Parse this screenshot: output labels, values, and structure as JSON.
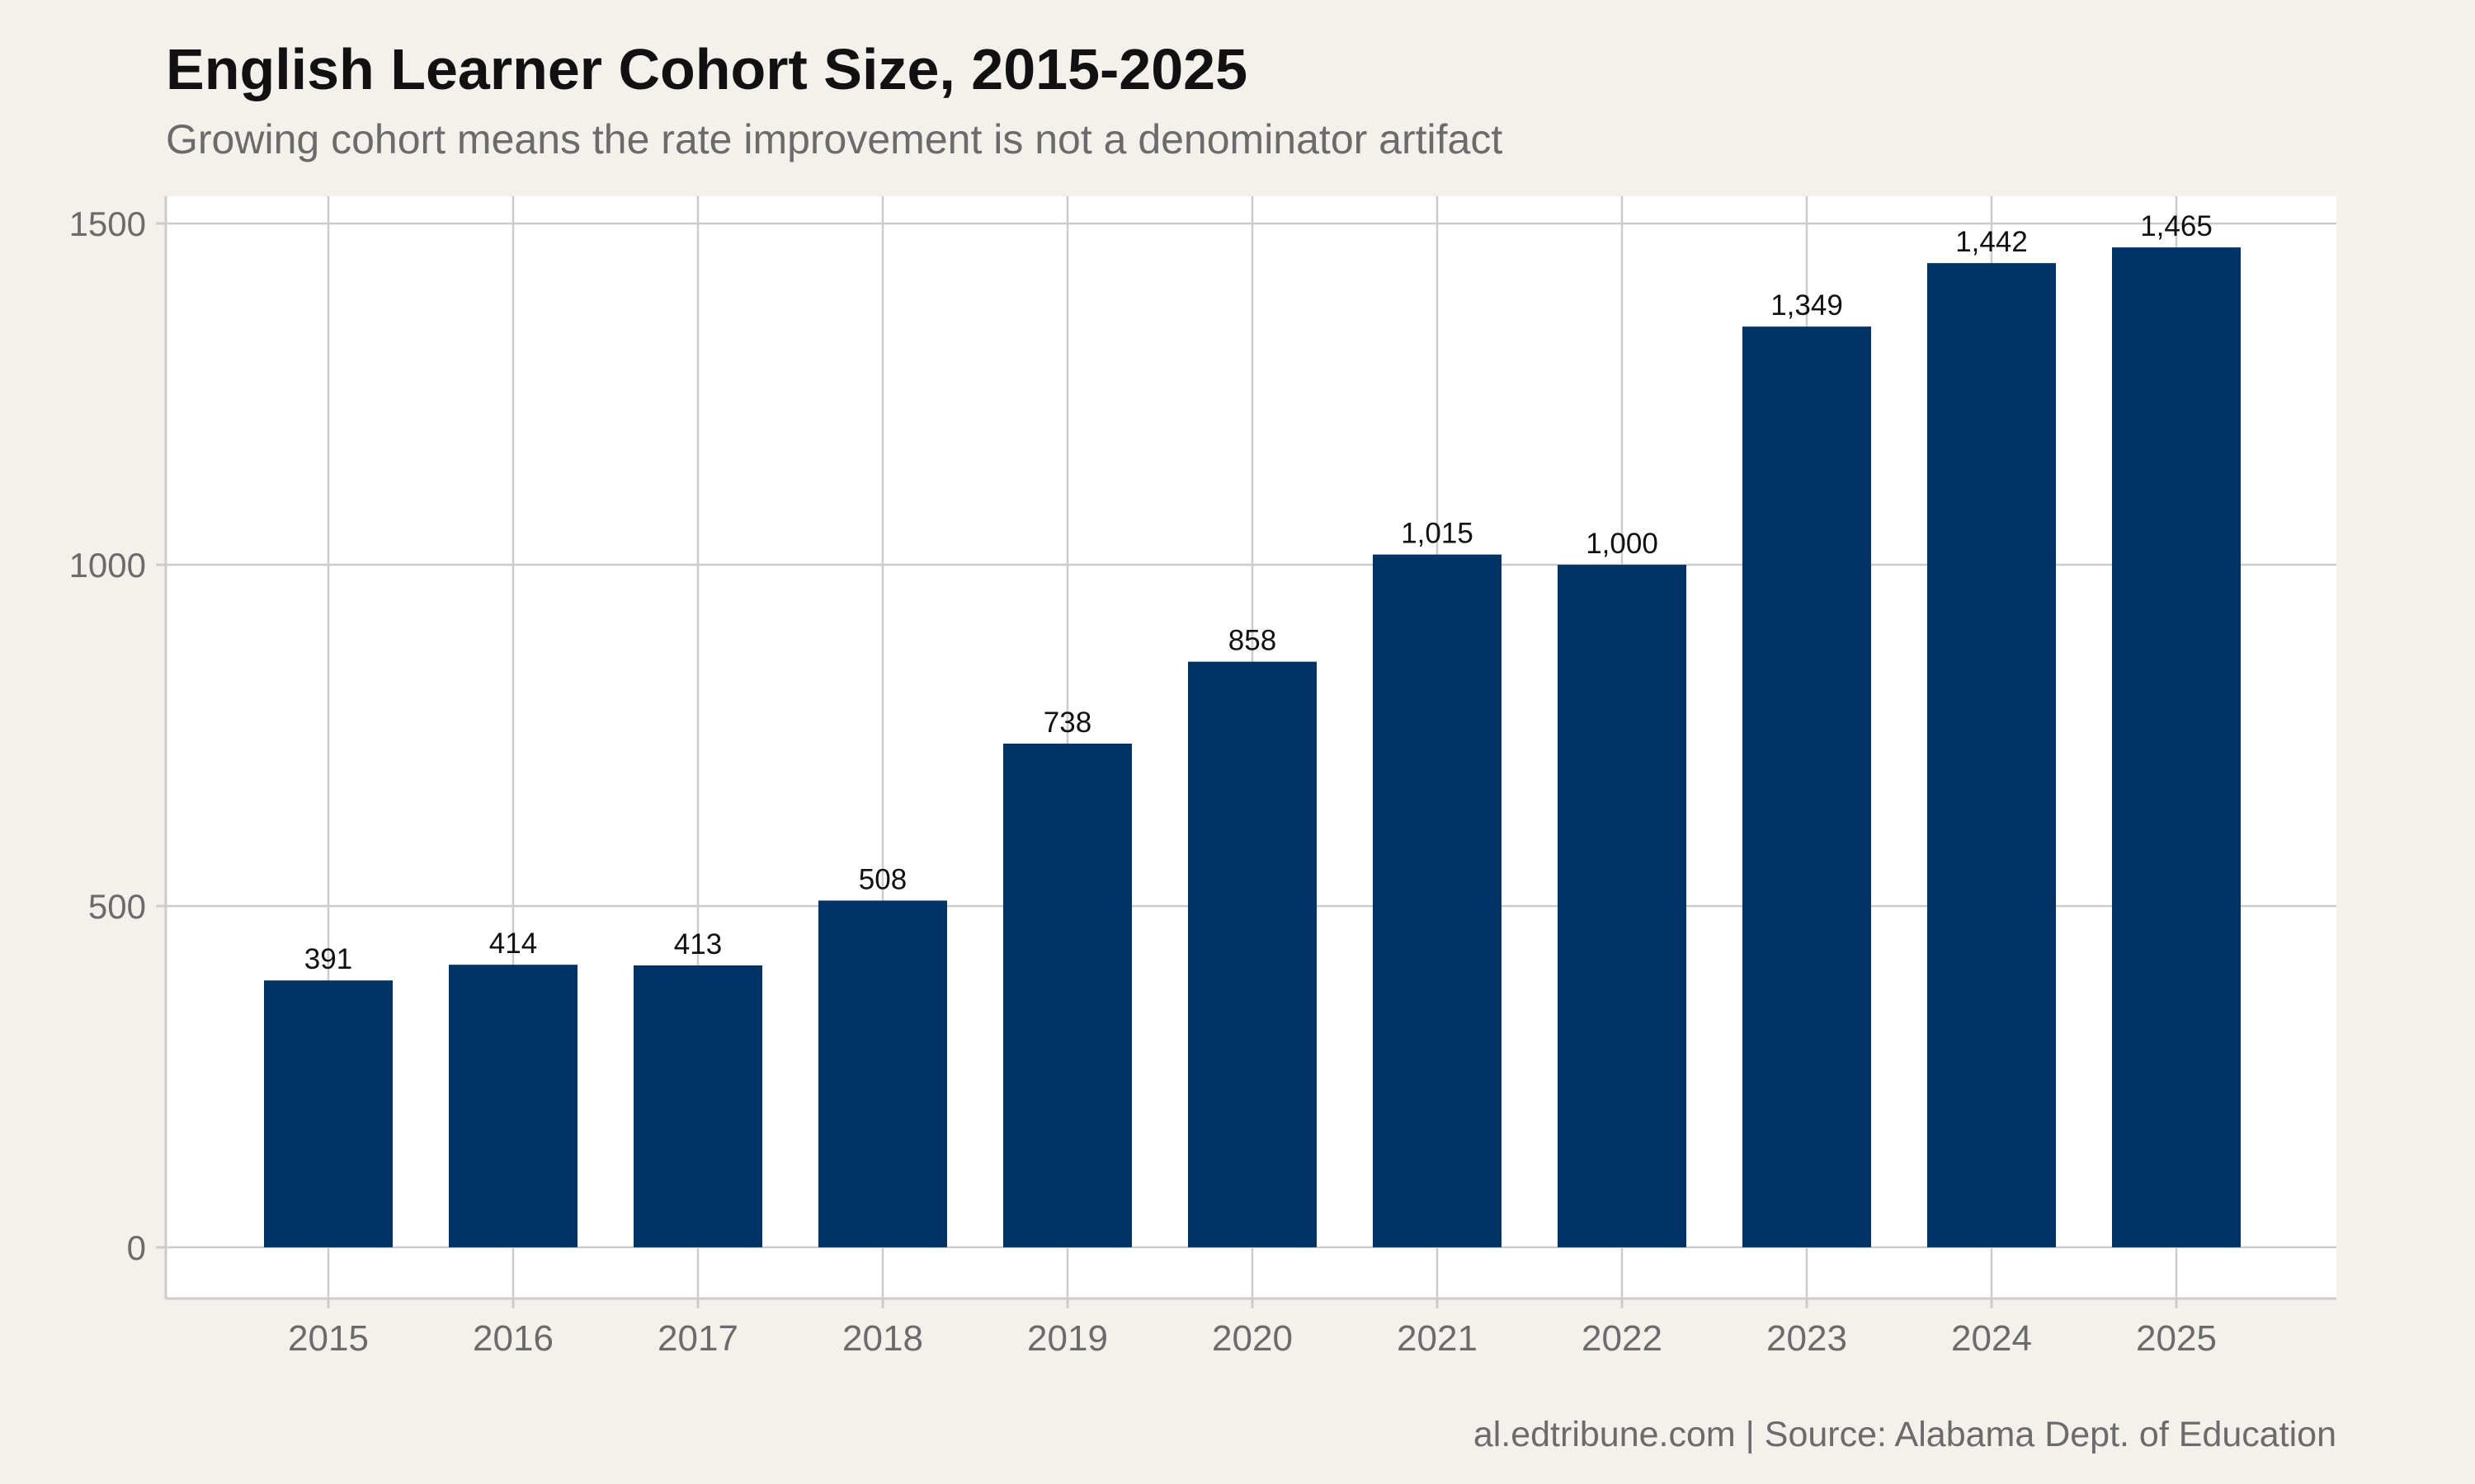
{
  "title": "English Learner Cohort Size, 2015-2025",
  "subtitle": "Growing cohort means the rate improvement is not a denominator artifact",
  "caption": "al.edtribune.com | Source: Alabama Dept. of Education",
  "colors": {
    "background": "#f4f1ec",
    "panel": "#ffffff",
    "bar": "#003366",
    "grid": "#cccccc",
    "axis_text": "#6b6b6b",
    "label_text": "#111111"
  },
  "chart_data": {
    "type": "bar",
    "title": "English Learner Cohort Size, 2015-2025",
    "subtitle": "Growing cohort means the rate improvement is not a denominator artifact",
    "xlabel": "",
    "ylabel": "",
    "categories": [
      "2015",
      "2016",
      "2017",
      "2018",
      "2019",
      "2020",
      "2021",
      "2022",
      "2023",
      "2024",
      "2025"
    ],
    "values": [
      391,
      414,
      413,
      508,
      738,
      858,
      1015,
      1000,
      1349,
      1442,
      1465
    ],
    "data_labels": [
      "391",
      "414",
      "413",
      "508",
      "738",
      "858",
      "1,015",
      "1,000",
      "1,349",
      "1,442",
      "1,465"
    ],
    "yticks": [
      0,
      500,
      1000,
      1500
    ],
    "ytick_labels": [
      "0",
      "500",
      "1000",
      "1500"
    ],
    "ylim": [
      -75,
      1540
    ],
    "grid": true,
    "legend": "none"
  }
}
